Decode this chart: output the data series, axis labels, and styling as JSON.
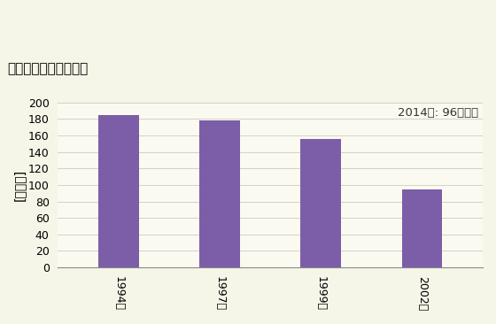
{
  "title": "商業の事業所数の推移",
  "ylabel": "[事業所]",
  "categories": [
    "1994年",
    "1997年",
    "1999年",
    "2002年"
  ],
  "values": [
    185,
    178,
    156,
    95
  ],
  "bar_color": "#7B5EA7",
  "ylim": [
    0,
    200
  ],
  "yticks": [
    0,
    20,
    40,
    60,
    80,
    100,
    120,
    140,
    160,
    180,
    200
  ],
  "annotation": "2014年: 96事業所",
  "background_color": "#F5F5E8",
  "plot_bg_color": "#FAFAF0",
  "title_fontsize": 11,
  "label_fontsize": 10,
  "tick_fontsize": 9,
  "annotation_fontsize": 9.5
}
